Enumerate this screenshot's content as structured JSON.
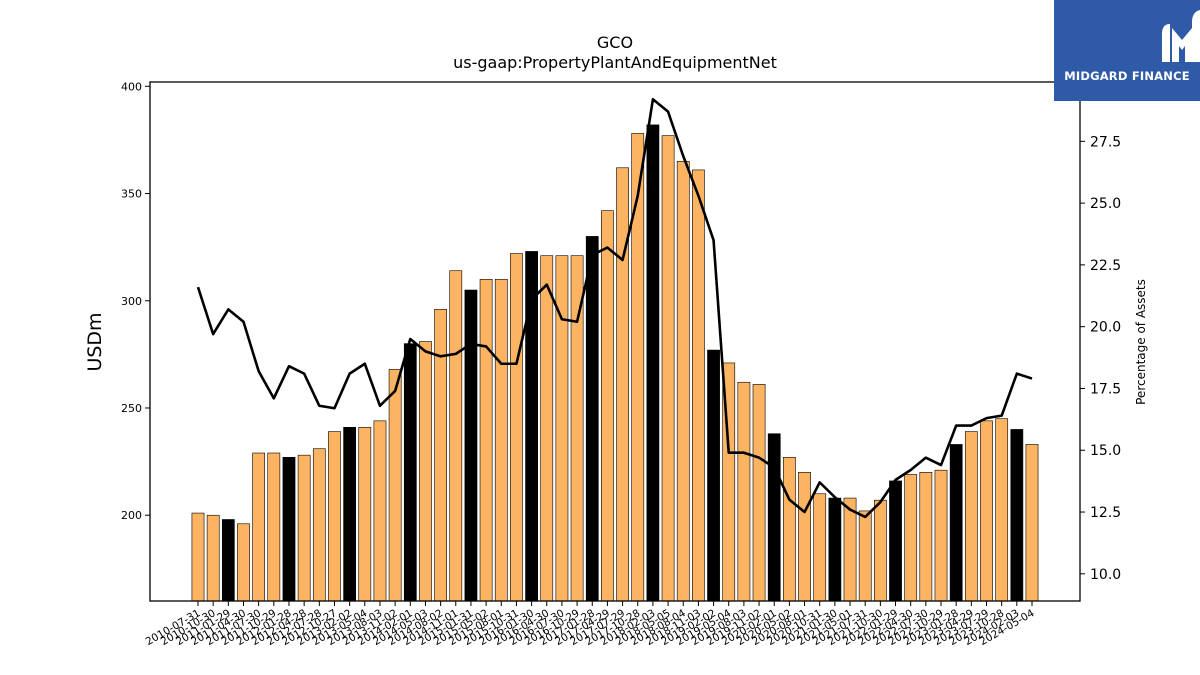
{
  "logo": {
    "text": "MIDGARD FINANCE"
  },
  "chart_data": {
    "type": "bar",
    "title": "GCO",
    "subtitle": "us-gaap:PropertyPlantAndEquipmentNet",
    "ylabel": "USDm",
    "y2label": "Percentage of Assets",
    "ylim": [
      160,
      402
    ],
    "y2lim": [
      8.9,
      29.9
    ],
    "yticks": [
      200,
      250,
      300,
      350,
      400
    ],
    "y2ticks": [
      "10.0",
      "12.5",
      "15.0",
      "17.5",
      "20.0",
      "22.5",
      "25.0",
      "27.5"
    ],
    "colors": {
      "bar": "#fdb462",
      "bar_annual": "#000000",
      "line": "#000000"
    },
    "categories": [
      "2010-07-31",
      "2010-10-30",
      "2011-01-29",
      "2011-04-30",
      "2011-07-30",
      "2011-10-29",
      "2012-01-28",
      "2012-04-28",
      "2012-07-28",
      "2012-10-27",
      "2013-02-02",
      "2013-05-04",
      "2013-08-03",
      "2013-11-02",
      "2014-02-01",
      "2014-05-03",
      "2014-08-02",
      "2014-11-01",
      "2015-01-31",
      "2015-05-02",
      "2015-08-01",
      "2015-10-31",
      "2016-01-30",
      "2016-04-30",
      "2016-07-30",
      "2016-10-29",
      "2017-01-28",
      "2017-04-29",
      "2017-07-29",
      "2017-10-28",
      "2018-02-03",
      "2018-05-05",
      "2018-08-04",
      "2018-11-03",
      "2019-02-02",
      "2019-05-04",
      "2019-08-03",
      "2019-11-02",
      "2020-02-01",
      "2020-05-02",
      "2020-08-01",
      "2020-10-31",
      "2021-01-30",
      "2021-05-01",
      "2021-07-31",
      "2021-10-30",
      "2022-01-29",
      "2022-04-30",
      "2022-07-30",
      "2022-10-29",
      "2023-01-28",
      "2023-04-29",
      "2023-07-29",
      "2023-10-28",
      "2024-02-03",
      "2024-05-04"
    ],
    "annual_flags": [
      0,
      0,
      1,
      0,
      0,
      0,
      1,
      0,
      0,
      0,
      1,
      0,
      0,
      0,
      1,
      0,
      0,
      0,
      1,
      0,
      0,
      0,
      1,
      0,
      0,
      0,
      1,
      0,
      0,
      0,
      1,
      0,
      0,
      0,
      1,
      0,
      0,
      0,
      1,
      0,
      0,
      0,
      1,
      0,
      0,
      0,
      1,
      0,
      0,
      0,
      1,
      0,
      0,
      0,
      1,
      0
    ],
    "series": [
      {
        "name": "USDm",
        "values": [
          201,
          200,
          198,
          196,
          229,
          229,
          227,
          228,
          231,
          239,
          241,
          241,
          244,
          268,
          280,
          281,
          296,
          314,
          305,
          310,
          310,
          322,
          323,
          321,
          321,
          321,
          330,
          342,
          362,
          378,
          382,
          377,
          365,
          361,
          277,
          271,
          262,
          261,
          238,
          227,
          220,
          210,
          208,
          208,
          202,
          207,
          216,
          219,
          220,
          221,
          233,
          239,
          244,
          245,
          240,
          233
        ]
      },
      {
        "name": "Percentage of Assets",
        "values": [
          21.6,
          19.7,
          20.7,
          20.2,
          18.2,
          17.1,
          18.4,
          18.1,
          16.8,
          16.7,
          18.1,
          18.5,
          16.8,
          17.4,
          19.5,
          19.0,
          18.8,
          18.9,
          19.3,
          19.2,
          18.5,
          18.5,
          21.1,
          21.7,
          20.3,
          20.2,
          22.9,
          23.2,
          22.7,
          25.3,
          29.2,
          28.7,
          26.9,
          25.3,
          23.5,
          14.9,
          14.9,
          14.7,
          14.3,
          13.0,
          12.5,
          13.7,
          13.1,
          12.6,
          12.3,
          12.9,
          13.8,
          14.2,
          14.7,
          14.4,
          16.0,
          16.0,
          16.3,
          16.4,
          18.1,
          17.9
        ]
      }
    ],
    "legend": "none",
    "grid": false
  }
}
